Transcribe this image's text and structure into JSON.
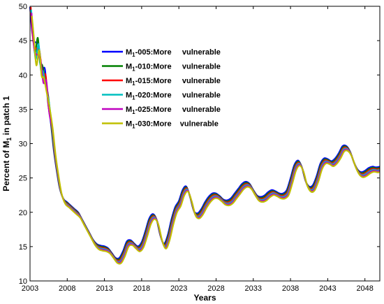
{
  "chart_data": {
    "type": "line",
    "xlabel": "Years",
    "ylabel_main": "Percent of M",
    "ylabel_sub": "1",
    "ylabel_tail": " in patch 1",
    "xlim": [
      2003,
      2050
    ],
    "ylim": [
      10,
      50
    ],
    "xticks": [
      2003,
      2008,
      2013,
      2018,
      2023,
      2028,
      2033,
      2038,
      2043,
      2048
    ],
    "yticks": [
      10,
      15,
      20,
      25,
      30,
      35,
      40,
      45,
      50
    ],
    "grid": false,
    "legend_position": "upper-left-inside",
    "series": [
      {
        "name": "M1-005:More vulnerable",
        "label_main": "M",
        "label_sub": "1",
        "label_tail": "-005:More     vulnerable",
        "color": "#0000ff",
        "offset": 0.45,
        "lag": 0.0
      },
      {
        "name": "M1-010:More vulnerable",
        "label_main": "M",
        "label_sub": "1",
        "label_tail": "-010:More     vulnerable",
        "color": "#008000",
        "offset": 0.3,
        "lag": 0.05
      },
      {
        "name": "M1-015:More vulnerable",
        "label_main": "M",
        "label_sub": "1",
        "label_tail": "-015:More     vulnerable",
        "color": "#ff0000",
        "offset": 0.15,
        "lag": 0.1
      },
      {
        "name": "M1-020:More vulnerable",
        "label_main": "M",
        "label_sub": "1",
        "label_tail": "-020:More     vulnerable",
        "color": "#00bfbf",
        "offset": 0.0,
        "lag": 0.15
      },
      {
        "name": "M1-025:More vulnerable",
        "label_main": "M",
        "label_sub": "1",
        "label_tail": "-025:More     vulnerable",
        "color": "#bf00bf",
        "offset": -0.15,
        "lag": 0.2
      },
      {
        "name": "M1-030:More vulnerable",
        "label_main": "M",
        "label_sub": "1",
        "label_tail": "-030:More    vulnerable",
        "color": "#bfbf00",
        "offset": -0.3,
        "lag": 0.25
      }
    ],
    "x": [
      2003.0,
      2003.3,
      2003.6,
      2004.0,
      2004.3,
      2004.6,
      2005.0,
      2005.4,
      2005.8,
      2006.2,
      2006.6,
      2007.0,
      2007.5,
      2008.0,
      2008.5,
      2009.0,
      2009.5,
      2010.0,
      2010.5,
      2011.0,
      2011.5,
      2012.0,
      2012.5,
      2013.0,
      2013.5,
      2014.0,
      2014.5,
      2015.0,
      2015.5,
      2016.0,
      2016.5,
      2017.0,
      2017.5,
      2018.0,
      2018.5,
      2019.0,
      2019.5,
      2020.0,
      2020.5,
      2021.0,
      2021.5,
      2022.0,
      2022.5,
      2023.0,
      2023.5,
      2024.0,
      2024.5,
      2025.0,
      2025.5,
      2026.0,
      2026.5,
      2027.0,
      2027.5,
      2028.0,
      2028.5,
      2029.0,
      2029.5,
      2030.0,
      2030.5,
      2031.0,
      2031.5,
      2032.0,
      2032.5,
      2033.0,
      2033.5,
      2034.0,
      2034.5,
      2035.0,
      2035.5,
      2036.0,
      2036.5,
      2037.0,
      2037.5,
      2038.0,
      2038.5,
      2039.0,
      2039.5,
      2040.0,
      2040.5,
      2041.0,
      2041.5,
      2042.0,
      2042.5,
      2043.0,
      2043.5,
      2044.0,
      2044.5,
      2045.0,
      2045.5,
      2046.0,
      2046.5,
      2047.0,
      2047.5,
      2048.0,
      2048.5,
      2049.0,
      2049.5,
      2050.0
    ],
    "y": [
      49.5,
      46.0,
      43.5,
      44.5,
      42.0,
      40.5,
      39.5,
      36.0,
      32.5,
      28.5,
      25.5,
      23.0,
      21.5,
      21.0,
      20.5,
      20.0,
      19.5,
      18.5,
      17.5,
      16.5,
      15.5,
      14.9,
      14.7,
      14.6,
      14.3,
      13.6,
      12.9,
      12.9,
      13.9,
      15.3,
      15.5,
      15.0,
      14.6,
      15.2,
      16.8,
      18.6,
      19.3,
      18.5,
      16.2,
      15.0,
      16.2,
      18.5,
      20.3,
      21.2,
      22.8,
      23.3,
      21.8,
      19.8,
      19.4,
      20.0,
      21.0,
      21.8,
      22.3,
      22.3,
      21.9,
      21.4,
      21.3,
      21.6,
      22.3,
      23.0,
      23.7,
      24.0,
      23.7,
      22.8,
      22.0,
      21.8,
      22.0,
      22.5,
      22.8,
      22.6,
      22.3,
      22.3,
      22.8,
      24.5,
      26.4,
      27.1,
      26.2,
      24.2,
      23.3,
      23.5,
      24.8,
      26.6,
      27.4,
      27.3,
      27.0,
      27.4,
      28.2,
      29.2,
      29.2,
      28.4,
      26.9,
      25.8,
      25.4,
      25.6,
      26.0,
      26.2,
      26.1,
      26.2
    ]
  }
}
